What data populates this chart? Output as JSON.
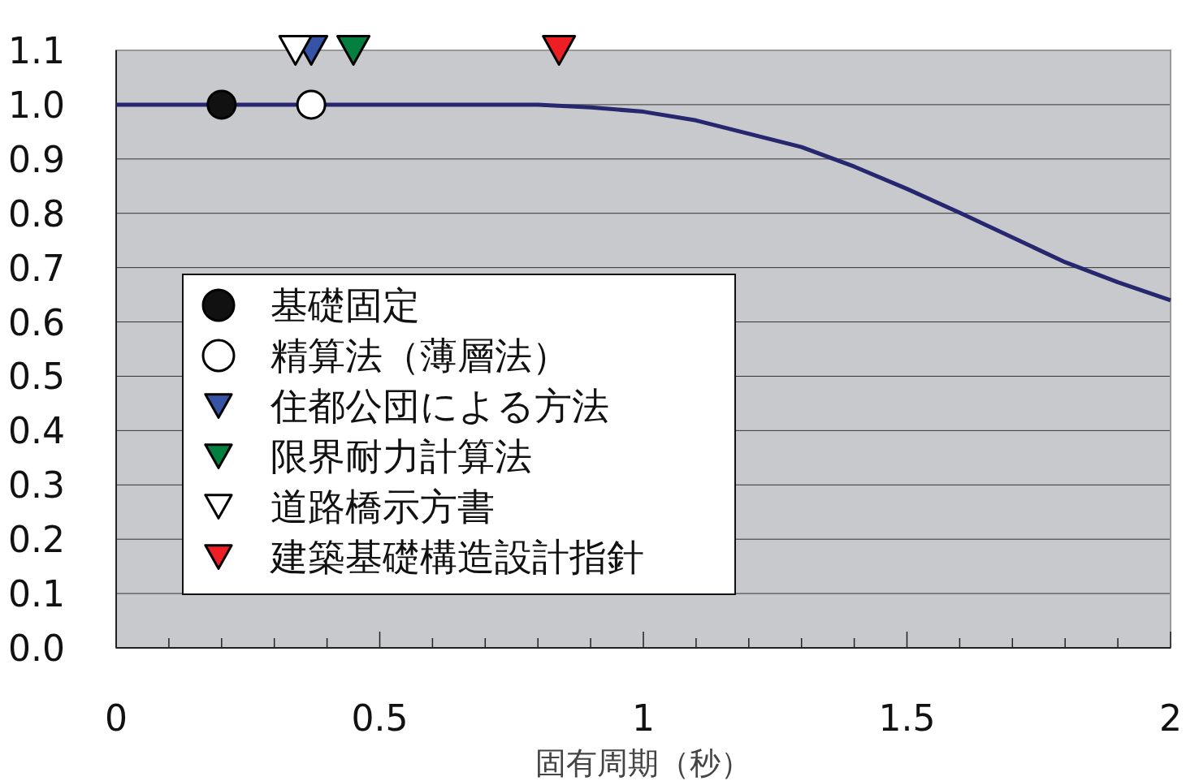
{
  "chart_data": {
    "type": "line",
    "xlabel": "固有周期（秒）",
    "xlim": [
      0,
      2
    ],
    "ylim": [
      0,
      1.1
    ],
    "xticks": [
      0,
      {
        "value": 0.1,
        "label": null
      },
      {
        "value": 0.2,
        "label": null
      },
      {
        "value": 0.3,
        "label": null
      },
      {
        "value": 0.4,
        "label": null
      },
      0.5,
      {
        "value": 0.6,
        "label": null
      },
      {
        "value": 0.7,
        "label": null
      },
      {
        "value": 0.8,
        "label": null
      },
      {
        "value": 0.9,
        "label": null
      },
      1,
      {
        "value": 1.1,
        "label": null
      },
      {
        "value": 1.2,
        "label": null
      },
      {
        "value": 1.3,
        "label": null
      },
      {
        "value": 1.4,
        "label": null
      },
      1.5,
      {
        "value": 1.6,
        "label": null
      },
      {
        "value": 1.7,
        "label": null
      },
      {
        "value": 1.8,
        "label": null
      },
      {
        "value": 1.9,
        "label": null
      },
      2
    ],
    "yticks": [
      {
        "value": 0,
        "label": "0.0"
      },
      0.1,
      0.2,
      0.3,
      0.4,
      0.5,
      0.6,
      0.7,
      0.8,
      0.9,
      {
        "value": 1,
        "label": "1.0"
      },
      1.1
    ],
    "grid": "y",
    "legend": "left",
    "series": [
      {
        "color": "#26276e",
        "marker": "none",
        "x": [
          0,
          0.8,
          0.9,
          1.0,
          1.1,
          1.3,
          1.4,
          1.5,
          1.6,
          1.8,
          1.9,
          2.0
        ],
        "values": [
          1.0,
          1.0,
          0.995,
          0.987,
          0.971,
          0.922,
          0.886,
          0.845,
          0.801,
          0.71,
          0.673,
          0.64
        ]
      },
      {
        "type": "scatter",
        "name": "基礎固定",
        "color": "#111111",
        "marker": "circle",
        "x": [
          0.2
        ],
        "values": [
          1.0
        ]
      },
      {
        "type": "scatter",
        "name": "精算法（薄層法）",
        "color": "#ffffff",
        "marker": "circle",
        "x": [
          0.37
        ],
        "values": [
          1.0
        ]
      },
      {
        "type": "scatter",
        "name": "住都公団による方法",
        "color": "#3653a5",
        "marker": "triangle",
        "x": [
          0.37
        ],
        "values": [
          1.1
        ]
      },
      {
        "type": "scatter",
        "name": "限界耐力計算法",
        "color": "#03803f",
        "marker": "triangle",
        "x": [
          0.45
        ],
        "values": [
          1.1
        ]
      },
      {
        "type": "scatter",
        "name": "道路橋示方書",
        "color": "#ffffff",
        "marker": "triangle",
        "x": [
          0.34
        ],
        "values": [
          1.1
        ]
      },
      {
        "type": "scatter",
        "name": "建築基礎構造設計指針",
        "color": "#ed1f24",
        "marker": "triangle",
        "x": [
          0.84
        ],
        "values": [
          1.1
        ]
      }
    ]
  }
}
